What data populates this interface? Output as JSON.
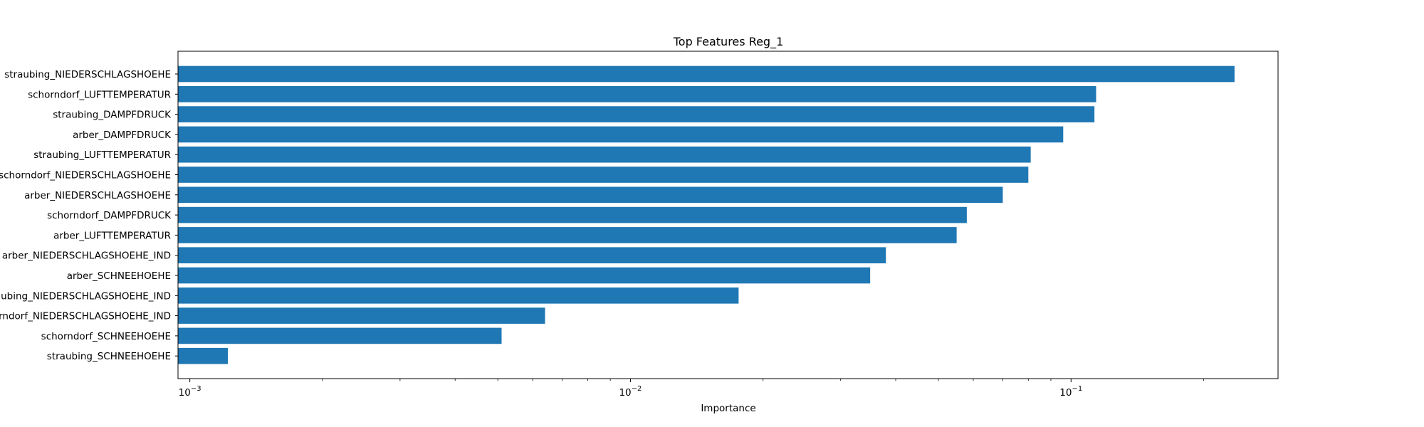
{
  "chart_data": {
    "type": "bar",
    "orientation": "horizontal",
    "title": "Top Features Reg_1",
    "xlabel": "Importance",
    "ylabel": "",
    "xscale": "log",
    "xlim": [
      0.00094,
      0.295
    ],
    "grid": false,
    "legend": "none",
    "bar_color": "#1f77b4",
    "x_tick_labels": [
      {
        "value": 0.001,
        "base": "10",
        "exp": "−3"
      },
      {
        "value": 0.01,
        "base": "10",
        "exp": "−2"
      },
      {
        "value": 0.1,
        "base": "10",
        "exp": "−1"
      }
    ],
    "categories": [
      "straubing_NIEDERSCHLAGSHOEHE",
      "schorndorf_LUFTTEMPERATUR",
      "straubing_DAMPFDRUCK",
      "arber_DAMPFDRUCK",
      "straubing_LUFTTEMPERATUR",
      "schorndorf_NIEDERSCHLAGSHOEHE",
      "arber_NIEDERSCHLAGSHOEHE",
      "schorndorf_DAMPFDRUCK",
      "arber_LUFTTEMPERATUR",
      "arber_NIEDERSCHLAGSHOEHE_IND",
      "arber_SCHNEEHOEHE",
      "straubing_NIEDERSCHLAGSHOEHE_IND",
      "schorndorf_NIEDERSCHLAGSHOEHE_IND",
      "schorndorf_SCHNEEHOEHE",
      "straubing_SCHNEEHOEHE"
    ],
    "values": [
      0.235,
      0.114,
      0.113,
      0.096,
      0.081,
      0.08,
      0.07,
      0.058,
      0.055,
      0.038,
      0.035,
      0.0176,
      0.0064,
      0.0051,
      0.00122
    ]
  }
}
